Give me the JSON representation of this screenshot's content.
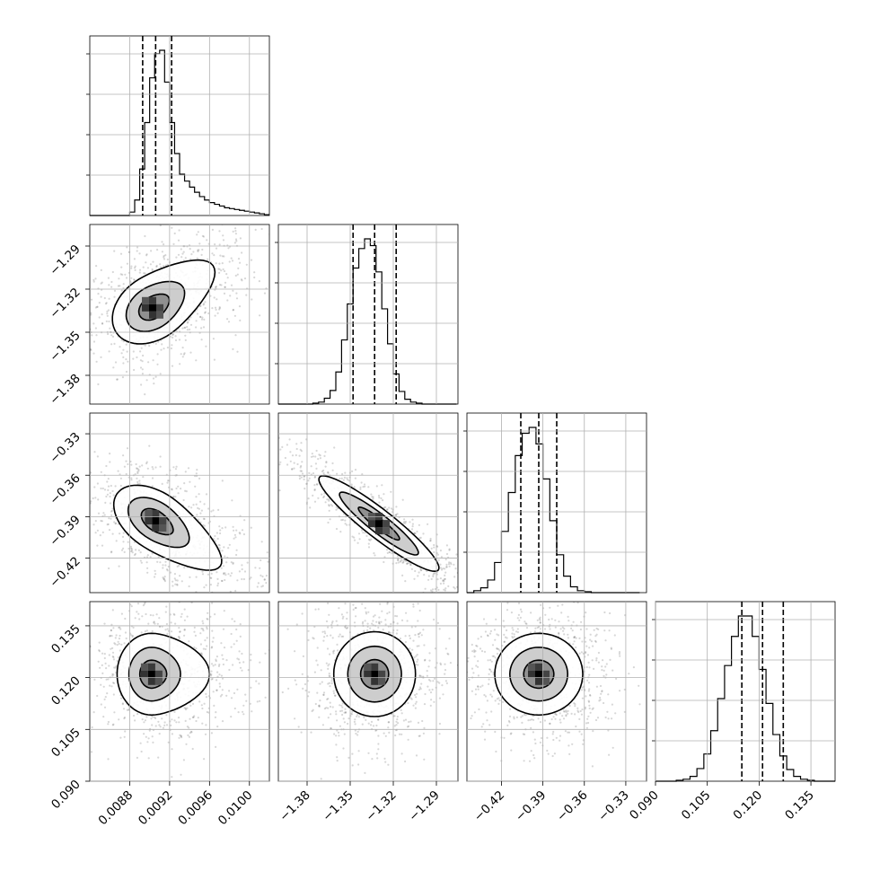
{
  "chart_data": {
    "type": "corner",
    "grid": true,
    "parameters": [
      {
        "center": 0.00905,
        "sigma": 0.00012,
        "tail": 0.0006,
        "ylim": [
          0.0084,
          0.0102
        ],
        "quantiles": [
          0.00893,
          0.00906,
          0.00922
        ],
        "ticks": [
          "0.0088",
          "0.0092",
          "0.0096",
          "0.0100"
        ],
        "tick_values": [
          0.0088,
          0.0092,
          0.0096,
          0.01
        ]
      },
      {
        "center": -1.333,
        "sigma": 0.011,
        "ylim": [
          -1.4,
          -1.275
        ],
        "quantiles": [
          -1.348,
          -1.333,
          -1.318
        ],
        "ticks": [
          "−1.38",
          "−1.35",
          "−1.32",
          "−1.29"
        ],
        "tick_values": [
          -1.38,
          -1.35,
          -1.32,
          -1.29
        ]
      },
      {
        "center": -0.393,
        "sigma": 0.011,
        "ylim": [
          -0.445,
          -0.315
        ],
        "quantiles": [
          -0.406,
          -0.393,
          -0.38
        ],
        "ticks": [
          "−0.42",
          "−0.39",
          "−0.36",
          "−0.33"
        ],
        "tick_values": [
          -0.42,
          -0.39,
          -0.36,
          -0.33
        ]
      },
      {
        "center": 0.121,
        "sigma": 0.0058,
        "ylim": [
          0.09,
          0.142
        ],
        "quantiles": [
          0.115,
          0.121,
          0.127
        ],
        "ticks": [
          "0.090",
          "0.105",
          "0.120",
          "0.135"
        ],
        "tick_values": [
          0.09,
          0.105,
          0.12,
          0.135
        ]
      }
    ],
    "histograms": [
      {
        "bin_edges": [
          0.0084,
          0.00845,
          0.0085,
          0.00855,
          0.0086,
          0.00865,
          0.0087,
          0.00875,
          0.0088,
          0.00885,
          0.0089,
          0.00895,
          0.009,
          0.00905,
          0.0091,
          0.00915,
          0.0092,
          0.00925,
          0.0093,
          0.00935,
          0.0094,
          0.00945,
          0.0095,
          0.00955,
          0.0096,
          0.00965,
          0.0097,
          0.00975,
          0.0098,
          0.00985,
          0.0099,
          0.00995,
          0.01,
          0.01005,
          0.0101,
          0.01015,
          0.0102
        ],
        "counts": [
          0,
          0,
          0,
          0,
          0,
          0,
          0,
          0,
          4,
          18,
          54,
          108,
          160,
          188,
          192,
          155,
          108,
          72,
          48,
          40,
          33,
          27,
          22,
          18,
          15,
          13,
          11,
          9,
          8,
          7,
          6,
          5,
          4,
          3,
          2,
          1
        ]
      },
      {
        "bin_edges": [
          -1.4,
          -1.396,
          -1.392,
          -1.388,
          -1.384,
          -1.38,
          -1.376,
          -1.372,
          -1.368,
          -1.364,
          -1.36,
          -1.356,
          -1.352,
          -1.348,
          -1.344,
          -1.34,
          -1.336,
          -1.332,
          -1.328,
          -1.324,
          -1.32,
          -1.316,
          -1.312,
          -1.308,
          -1.304,
          -1.3,
          -1.296,
          -1.292,
          -1.288,
          -1.284,
          -1.28,
          -1.276
        ],
        "counts": [
          0,
          0,
          0,
          0,
          0,
          0,
          1,
          2,
          6,
          14,
          33,
          66,
          103,
          140,
          160,
          170,
          163,
          136,
          98,
          62,
          31,
          13,
          5,
          2,
          1,
          0,
          0,
          0,
          0,
          0,
          0
        ]
      },
      {
        "bin_edges": [
          -0.445,
          -0.44,
          -0.435,
          -0.43,
          -0.425,
          -0.42,
          -0.415,
          -0.41,
          -0.405,
          -0.4,
          -0.395,
          -0.39,
          -0.385,
          -0.38,
          -0.375,
          -0.37,
          -0.365,
          -0.36,
          -0.355,
          -0.35,
          -0.345,
          -0.34,
          -0.335,
          -0.33,
          -0.325,
          -0.32
        ],
        "counts": [
          0,
          2,
          5,
          13,
          31,
          63,
          103,
          141,
          164,
          170,
          153,
          117,
          74,
          39,
          17,
          6,
          2,
          1,
          0,
          0,
          0,
          0,
          0,
          0,
          0
        ]
      },
      {
        "bin_edges": [
          0.09,
          0.092,
          0.094,
          0.096,
          0.098,
          0.1,
          0.102,
          0.104,
          0.106,
          0.108,
          0.11,
          0.112,
          0.114,
          0.116,
          0.118,
          0.12,
          0.122,
          0.124,
          0.126,
          0.128,
          0.13,
          0.132,
          0.134,
          0.136,
          0.138,
          0.14,
          0.142
        ],
        "counts": [
          0,
          0,
          0,
          1,
          2,
          5,
          13,
          28,
          52,
          85,
          119,
          149,
          170,
          170,
          149,
          115,
          80,
          48,
          26,
          12,
          5,
          2,
          1,
          0,
          0,
          0
        ]
      }
    ],
    "pairs": [
      {
        "x": 0,
        "y": 1,
        "peak": [
          0.00903,
          -1.333
        ],
        "levels": [
          "inner",
          "middle",
          "outer"
        ]
      },
      {
        "x": 0,
        "y": 2,
        "peak": [
          0.00906,
          -0.393
        ],
        "levels": [
          "inner",
          "middle",
          "outer"
        ]
      },
      {
        "x": 1,
        "y": 2,
        "peak": [
          -1.33,
          -0.395
        ],
        "levels": [
          "inner",
          "middle",
          "outer"
        ]
      },
      {
        "x": 0,
        "y": 3,
        "peak": [
          0.00902,
          0.121
        ],
        "levels": [
          "inner",
          "middle",
          "outer"
        ]
      },
      {
        "x": 1,
        "y": 3,
        "peak": [
          -1.333,
          0.121
        ],
        "levels": [
          "inner",
          "middle",
          "outer"
        ]
      },
      {
        "x": 2,
        "y": 3,
        "peak": [
          -0.393,
          0.121
        ],
        "levels": [
          "inner",
          "middle",
          "outer"
        ]
      }
    ]
  }
}
